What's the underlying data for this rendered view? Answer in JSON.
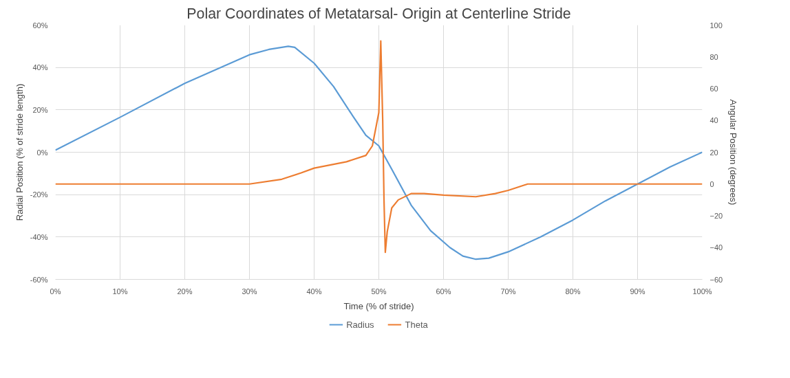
{
  "chart_data": {
    "type": "line",
    "title": "Polar Coordinates of Metatarsal- Origin at Centerline Stride",
    "xlabel": "Time (% of stride)",
    "ylabel": "Radial Position (% of stride length)",
    "y2label": "Angular Position (degrees)",
    "xlim": [
      0,
      100
    ],
    "xticks": [
      {
        "value": 0,
        "label": "0%"
      },
      {
        "value": 10,
        "label": "10%"
      },
      {
        "value": 20,
        "label": "20%"
      },
      {
        "value": 30,
        "label": "30%"
      },
      {
        "value": 40,
        "label": "40%"
      },
      {
        "value": 50,
        "label": "50%"
      },
      {
        "value": 60,
        "label": "60%"
      },
      {
        "value": 70,
        "label": "70%"
      },
      {
        "value": 80,
        "label": "80%"
      },
      {
        "value": 90,
        "label": "90%"
      },
      {
        "value": 100,
        "label": "100%"
      }
    ],
    "ylim": [
      -60,
      60
    ],
    "yticks": [
      {
        "value": -60,
        "label": "-60%"
      },
      {
        "value": -40,
        "label": "-40%"
      },
      {
        "value": -20,
        "label": "-20%"
      },
      {
        "value": 0,
        "label": "0%"
      },
      {
        "value": 20,
        "label": "20%"
      },
      {
        "value": 40,
        "label": "40%"
      },
      {
        "value": 60,
        "label": "60%"
      }
    ],
    "y2lim": [
      -60,
      100
    ],
    "y2ticks": [
      -60,
      -40,
      -20,
      0,
      20,
      40,
      60,
      80,
      100
    ],
    "grid": true,
    "legend": "bottom",
    "line_style": "solid",
    "marker": "none",
    "series": [
      {
        "name": "Radius",
        "color": "#5b9bd5",
        "x": [
          0,
          10,
          20,
          30,
          33,
          36,
          37,
          40,
          43,
          46,
          48,
          50,
          52,
          55,
          58,
          61,
          63,
          65,
          67,
          70,
          75,
          80,
          85,
          90,
          95,
          100
        ],
        "values": [
          1,
          16.5,
          32.5,
          46,
          48.5,
          50,
          49.5,
          42,
          31,
          17,
          8,
          3,
          -8,
          -25,
          -37,
          -45,
          -49,
          -50.5,
          -50,
          -47,
          -40,
          -32,
          -23,
          -15,
          -7,
          0
        ]
      },
      {
        "name": "Theta",
        "color": "#ed7d31",
        "axis": "y2",
        "x": [
          0,
          30,
          35,
          38,
          40,
          45,
          48,
          49,
          50,
          50.3,
          50.6,
          50.8,
          51,
          51.3,
          52,
          53,
          55,
          57,
          60,
          65,
          68,
          70,
          73,
          100
        ],
        "values": [
          0,
          0,
          3,
          7,
          10,
          14,
          18,
          24,
          45,
          90,
          40,
          -10,
          -43,
          -30,
          -15,
          -10,
          -6,
          -6,
          -7,
          -8,
          -6,
          -4,
          0,
          0
        ]
      }
    ]
  }
}
